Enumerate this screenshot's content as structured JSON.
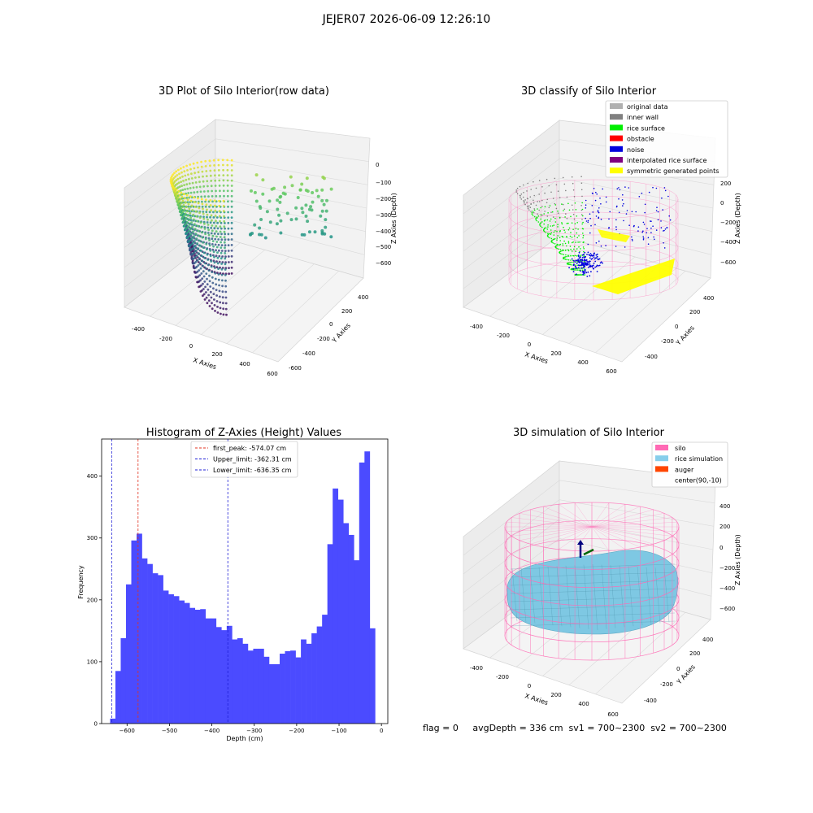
{
  "figure": {
    "suptitle": "JEJER07 2026-06-09 12:26:10",
    "status_line": "flag = 0     avgDepth = 336 cm  sv1 = 700~2300  sv2 = 700~2300"
  },
  "colors": {
    "histogram": "#4b4bff",
    "first_peak": "#e0301e",
    "limits": "#1f1fd6",
    "silo": "#ff69b4",
    "rice": "#7ec8e3",
    "auger": "#ff4500",
    "noise": "#0000ee",
    "rice_surface": "#00ee00",
    "inner_wall": "#808080",
    "symmetric": "#ffff00"
  },
  "plots": {
    "raw": {
      "title": "3D Plot of Silo Interior(row data)",
      "x_label": "X Axies",
      "y_label": "Y Axies",
      "z_label": "Z Axies (Depth)",
      "x_ticks": [
        "-400",
        "-200",
        "0",
        "200",
        "400",
        "600"
      ],
      "y_ticks": [
        "-600",
        "-400",
        "-200",
        "0",
        "200",
        "400"
      ],
      "z_ticks": [
        "0",
        "−100",
        "−200",
        "−300",
        "−400",
        "−500",
        "−600"
      ]
    },
    "classify": {
      "title": "3D classify of Silo Interior",
      "x_label": "X Axies",
      "y_label": "Y Axies",
      "z_label": "Z Axies (Depth)",
      "x_ticks": [
        "-400",
        "-200",
        "0",
        "200",
        "400",
        "600"
      ],
      "y_ticks": [
        "-400",
        "-200",
        "0",
        "200",
        "400"
      ],
      "z_ticks": [
        "200",
        "0",
        "−200",
        "−400",
        "−600"
      ],
      "legend": [
        {
          "label": "original data",
          "color": "#b0b0b0"
        },
        {
          "label": "inner wall",
          "color": "#808080"
        },
        {
          "label": "rice surface",
          "color": "#00ee00"
        },
        {
          "label": "obstacle",
          "color": "#ff0000"
        },
        {
          "label": "noise",
          "color": "#0000dd"
        },
        {
          "label": "interpolated rice surface",
          "color": "#800080"
        },
        {
          "label": "symmetric generated points",
          "color": "#ffff00"
        }
      ]
    },
    "simulation": {
      "title": "3D simulation of Silo Interior",
      "x_label": "X Axies",
      "y_label": "Y Axies",
      "z_label": "Z Axies (Depth)",
      "x_ticks": [
        "-400",
        "-200",
        "0",
        "200",
        "400",
        "600"
      ],
      "y_ticks": [
        "-400",
        "-200",
        "0",
        "200",
        "400"
      ],
      "z_ticks": [
        "400",
        "200",
        "0",
        "−200",
        "−400",
        "−600"
      ],
      "legend": [
        {
          "label": "silo",
          "color": "#ff69b4"
        },
        {
          "label": "rice simulation",
          "color": "#87ceeb"
        },
        {
          "label": "auger",
          "color": "#ff4500"
        },
        {
          "label": "center(90,-10)",
          "color": ""
        }
      ]
    }
  },
  "chart_data": [
    {
      "type": "scatter",
      "title": "3D Plot of Silo Interior(row data)",
      "xlabel": "X Axies",
      "ylabel": "Y Axies",
      "zlabel": "Z Axies (Depth)",
      "xlim": [
        -500,
        600
      ],
      "ylim": [
        -600,
        450
      ],
      "zlim": [
        -650,
        0
      ],
      "colormap": "viridis"
    },
    {
      "type": "scatter",
      "title": "3D classify of Silo Interior",
      "xlabel": "X Axies",
      "ylabel": "Y Axies",
      "zlabel": "Z Axies (Depth)",
      "xlim": [
        -500,
        600
      ],
      "ylim": [
        -500,
        450
      ],
      "zlim": [
        -700,
        200
      ],
      "legend_position": "top-right"
    },
    {
      "type": "bar",
      "title": "Histogram of Z-Axies (Height) Values",
      "xlabel": "Depth (cm)",
      "ylabel": "Frequency",
      "xlim": [
        -660,
        15
      ],
      "ylim": [
        0,
        460
      ],
      "x_ticks": [
        "−600",
        "−500",
        "−400",
        "−300",
        "−200",
        "−100",
        "0"
      ],
      "y_ticks": [
        "0",
        "100",
        "200",
        "300",
        "400"
      ],
      "bin_edges": [
        -640,
        -627.5,
        -615,
        -602.5,
        -590,
        -577.5,
        -565,
        -552.5,
        -540,
        -527.5,
        -515,
        -502.5,
        -490,
        -477.5,
        -465,
        -452.5,
        -440,
        -427.5,
        -415,
        -402.5,
        -390,
        -377.5,
        -365,
        -352.5,
        -340,
        -327.5,
        -315,
        -302.5,
        -290,
        -277.5,
        -265,
        -252.5,
        -240,
        -227.5,
        -215,
        -202.5,
        -190,
        -177.5,
        -165,
        -152.5,
        -140,
        -127.5,
        -115,
        -102.5,
        -90,
        -77.5,
        -65,
        -52.5,
        -40,
        -27.5,
        -15
      ],
      "values": [
        8,
        85,
        138,
        225,
        296,
        307,
        267,
        258,
        243,
        240,
        215,
        209,
        206,
        199,
        195,
        187,
        184,
        185,
        170,
        170,
        156,
        151,
        158,
        136,
        138,
        129,
        118,
        121,
        121,
        108,
        96,
        96,
        113,
        117,
        118,
        107,
        136,
        129,
        146,
        157,
        176,
        290,
        380,
        362,
        324,
        305,
        264,
        422,
        440,
        154
      ],
      "legend_position": "top-center",
      "reference_lines": [
        {
          "label": "first_peak: -574.07 cm",
          "x": -574.07,
          "style": "red dashed"
        },
        {
          "label": "Upper_limit: -362.31 cm",
          "x": -362.31,
          "style": "blue dashed"
        },
        {
          "label": "Lower_limit: -636.35 cm",
          "x": -636.35,
          "style": "blue dashed"
        }
      ]
    },
    {
      "type": "surface",
      "title": "3D simulation of Silo Interior",
      "xlabel": "X Axies",
      "ylabel": "Y Axies",
      "zlabel": "Z Axies (Depth)",
      "xlim": [
        -500,
        600
      ],
      "ylim": [
        -500,
        450
      ],
      "zlim": [
        -700,
        450
      ],
      "legend_position": "top-right"
    }
  ]
}
